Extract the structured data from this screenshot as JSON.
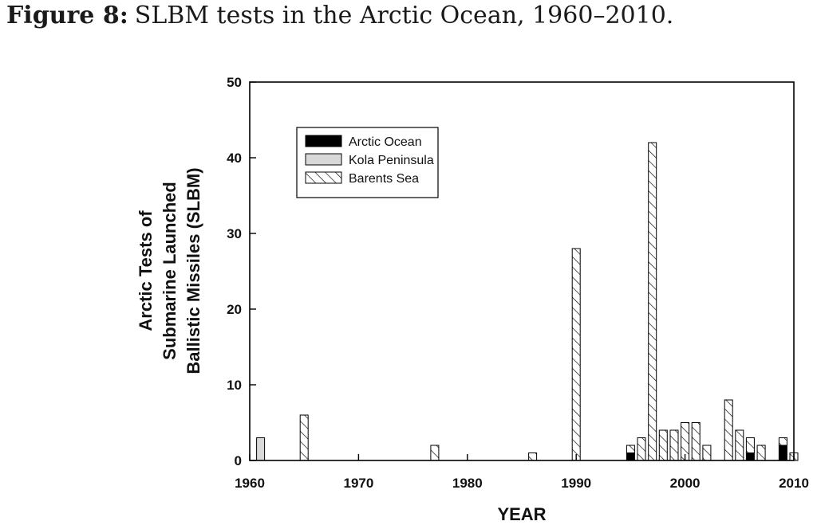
{
  "figure": {
    "label": "Figure 8:",
    "caption": "SLBM tests in the Arctic Ocean, 1960–2010."
  },
  "chart_data": {
    "type": "bar",
    "stacked": true,
    "xlabel": "YEAR",
    "ylabel_lines": [
      "Arctic Tests of",
      "Submarine Launched",
      "Ballistic Missiles (SLBM)"
    ],
    "xlim": [
      1960,
      2010
    ],
    "ylim": [
      0,
      50
    ],
    "xticks": [
      "1960",
      "1970",
      "1980",
      "1990",
      "2000",
      "2010"
    ],
    "yticks": [
      "0",
      "10",
      "20",
      "30",
      "40",
      "50"
    ],
    "legend_position": "top-left",
    "series": [
      {
        "name": "Arctic Ocean",
        "fill": "solid-black",
        "points": [
          [
            1995,
            1
          ],
          [
            2006,
            1
          ],
          [
            2009,
            2
          ]
        ]
      },
      {
        "name": "Kola Peninsula",
        "fill": "light-gray",
        "points": [
          [
            1961,
            3
          ]
        ]
      },
      {
        "name": "Barents Sea",
        "fill": "diagonal-hatch",
        "points": [
          [
            1965,
            6
          ],
          [
            1977,
            2
          ],
          [
            1986,
            1
          ],
          [
            1990,
            28
          ],
          [
            1995,
            1
          ],
          [
            1996,
            3
          ],
          [
            1997,
            42
          ],
          [
            1998,
            4
          ],
          [
            1999,
            4
          ],
          [
            2000,
            5
          ],
          [
            2001,
            5
          ],
          [
            2002,
            2
          ],
          [
            2004,
            8
          ],
          [
            2005,
            4
          ],
          [
            2006,
            2
          ],
          [
            2007,
            2
          ],
          [
            2009,
            1
          ],
          [
            2010,
            1
          ]
        ]
      }
    ]
  },
  "colors": {
    "arctic": "#000000",
    "kola": "#d9d9d9",
    "barents_bg": "#ffffff",
    "hatch": "#000000"
  }
}
